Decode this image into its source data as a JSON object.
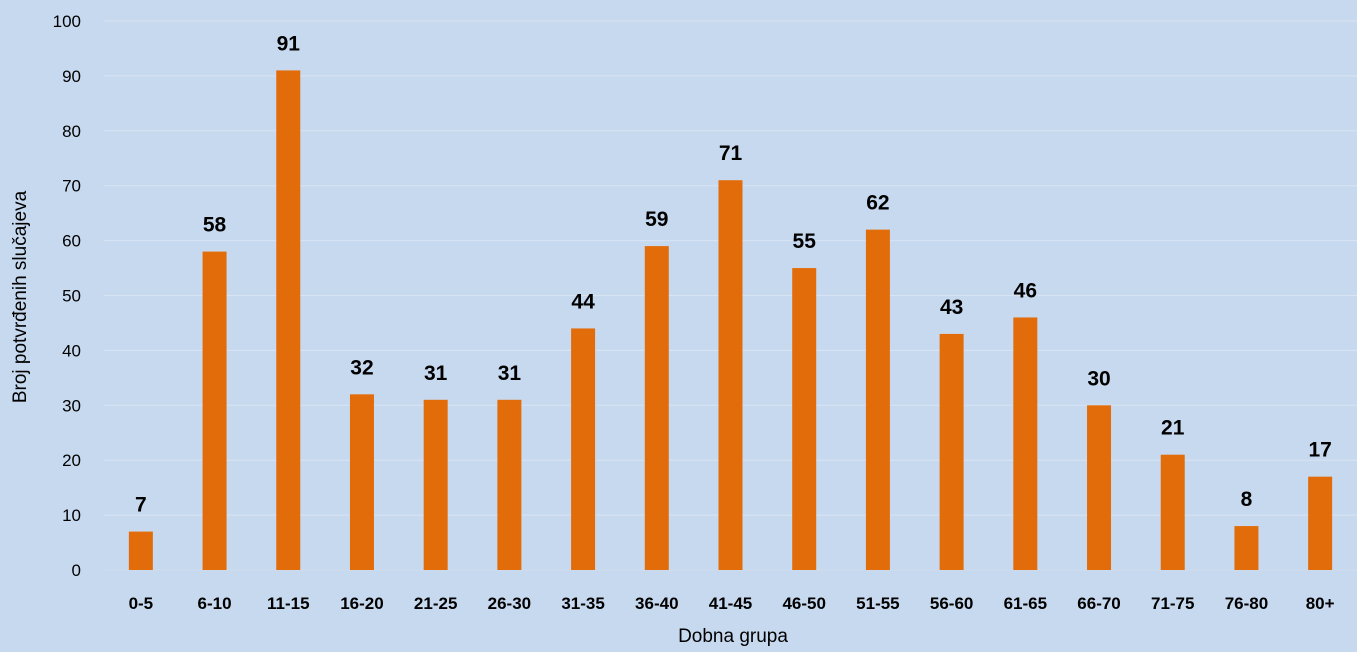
{
  "chart_data": {
    "type": "bar",
    "title": "",
    "xlabel": "Dobna grupa",
    "ylabel": "Broj potvrđenih slučajeva",
    "categories": [
      "0-5",
      "6-10",
      "11-15",
      "16-20",
      "21-25",
      "26-30",
      "31-35",
      "36-40",
      "41-45",
      "46-50",
      "51-55",
      "56-60",
      "61-65",
      "66-70",
      "71-75",
      "76-80",
      "80+"
    ],
    "values": [
      7,
      58,
      91,
      32,
      31,
      31,
      44,
      59,
      71,
      55,
      62,
      43,
      46,
      30,
      21,
      8,
      17
    ],
    "ylim": [
      0,
      100
    ],
    "yticks": [
      0,
      10,
      20,
      30,
      40,
      50,
      60,
      70,
      80,
      90,
      100
    ],
    "grid": true,
    "legend": "none",
    "data_labels": true,
    "colors": {
      "bar": "#e36c0a",
      "background": "#c7d9ef",
      "grid": "#d9e4f2"
    }
  }
}
